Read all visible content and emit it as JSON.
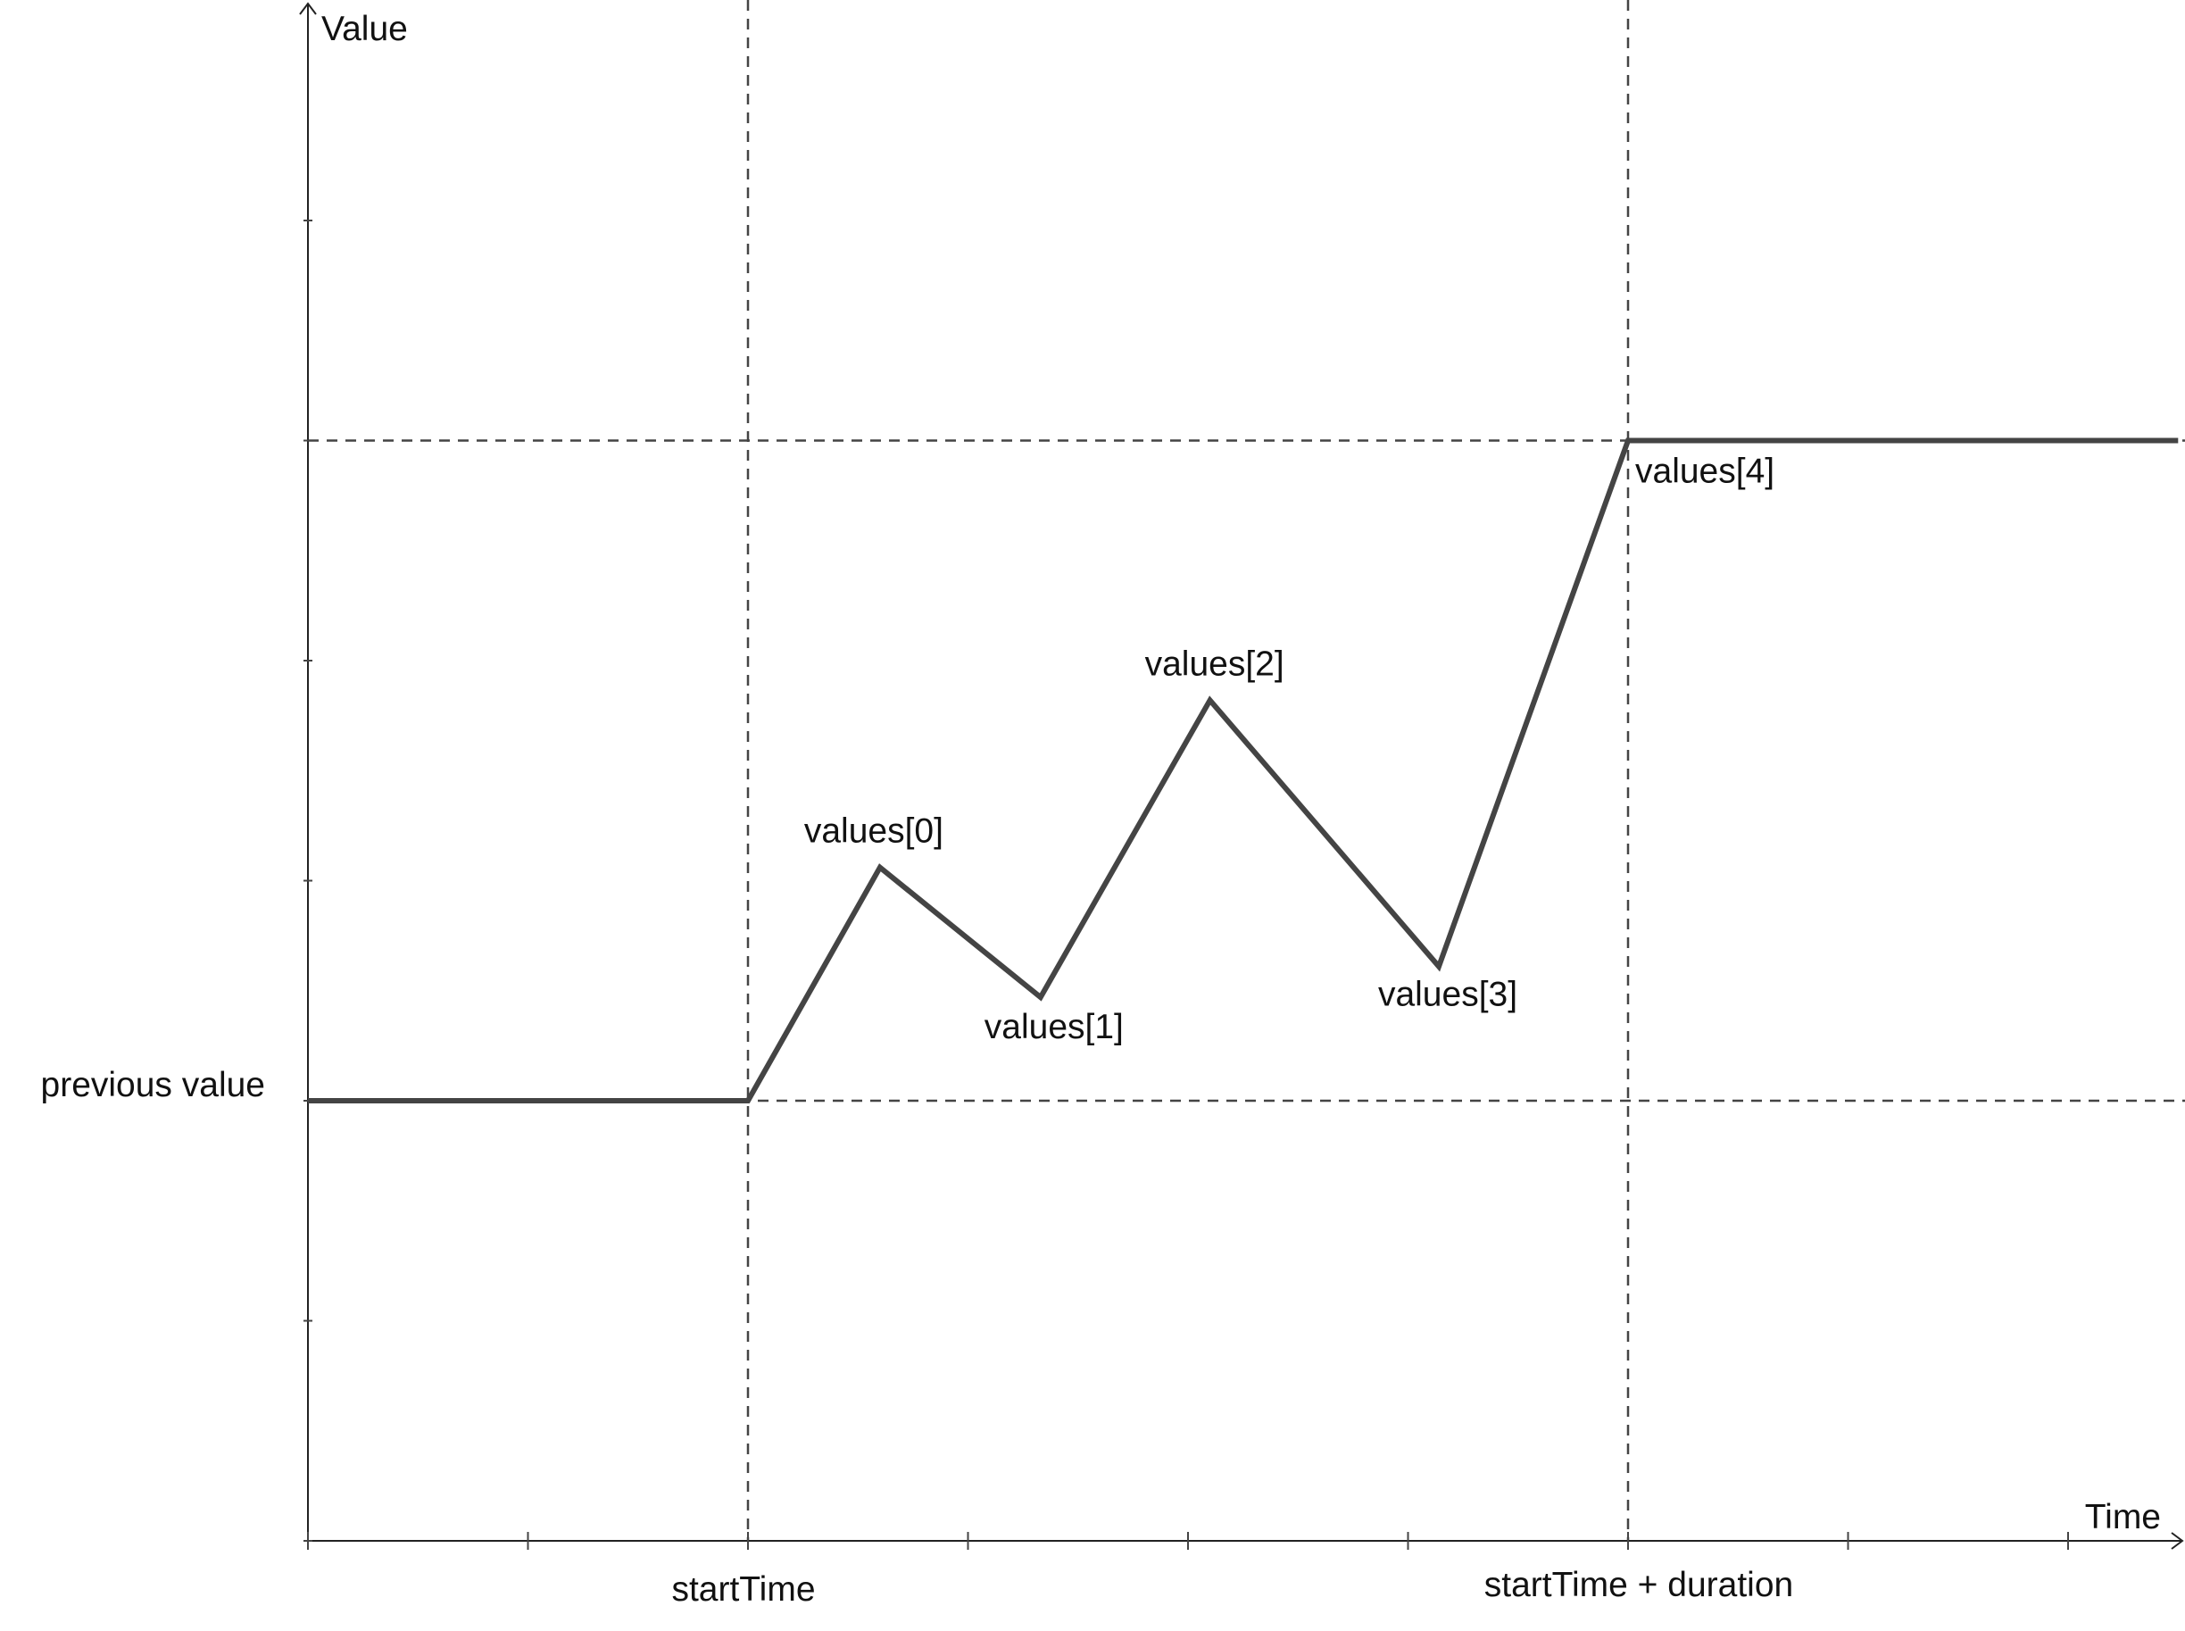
{
  "chart_data": {
    "type": "line",
    "title": "",
    "xlabel": "Time",
    "ylabel": "Value",
    "xlim": [
      0,
      8.5
    ],
    "ylim": [
      -2,
      5
    ],
    "x_ticks": [
      0,
      1,
      2,
      3,
      4,
      5,
      6,
      7,
      8
    ],
    "y_ticks": [
      -2,
      -1,
      0,
      1,
      2,
      3,
      4,
      5
    ],
    "grid": false,
    "guides": {
      "vertical": [
        {
          "x": 2,
          "label": "startTime"
        },
        {
          "x": 6,
          "label": "startTime + duration"
        }
      ],
      "horizontal": [
        {
          "y": 0,
          "label": "previous value"
        },
        {
          "y": 3,
          "label": ""
        }
      ]
    },
    "series": [
      {
        "points": [
          {
            "x": 0,
            "y": 0,
            "label": ""
          },
          {
            "x": 2,
            "y": 0,
            "label": ""
          },
          {
            "x": 2.6,
            "y": 1.06,
            "label": "values[0]"
          },
          {
            "x": 3.33,
            "y": 0.47,
            "label": "values[1]"
          },
          {
            "x": 4.1,
            "y": 1.82,
            "label": "values[2]"
          },
          {
            "x": 5.14,
            "y": 0.61,
            "label": "values[3]"
          },
          {
            "x": 6,
            "y": 3,
            "label": "values[4]"
          },
          {
            "x": 8.5,
            "y": 3,
            "label": ""
          }
        ]
      }
    ]
  }
}
